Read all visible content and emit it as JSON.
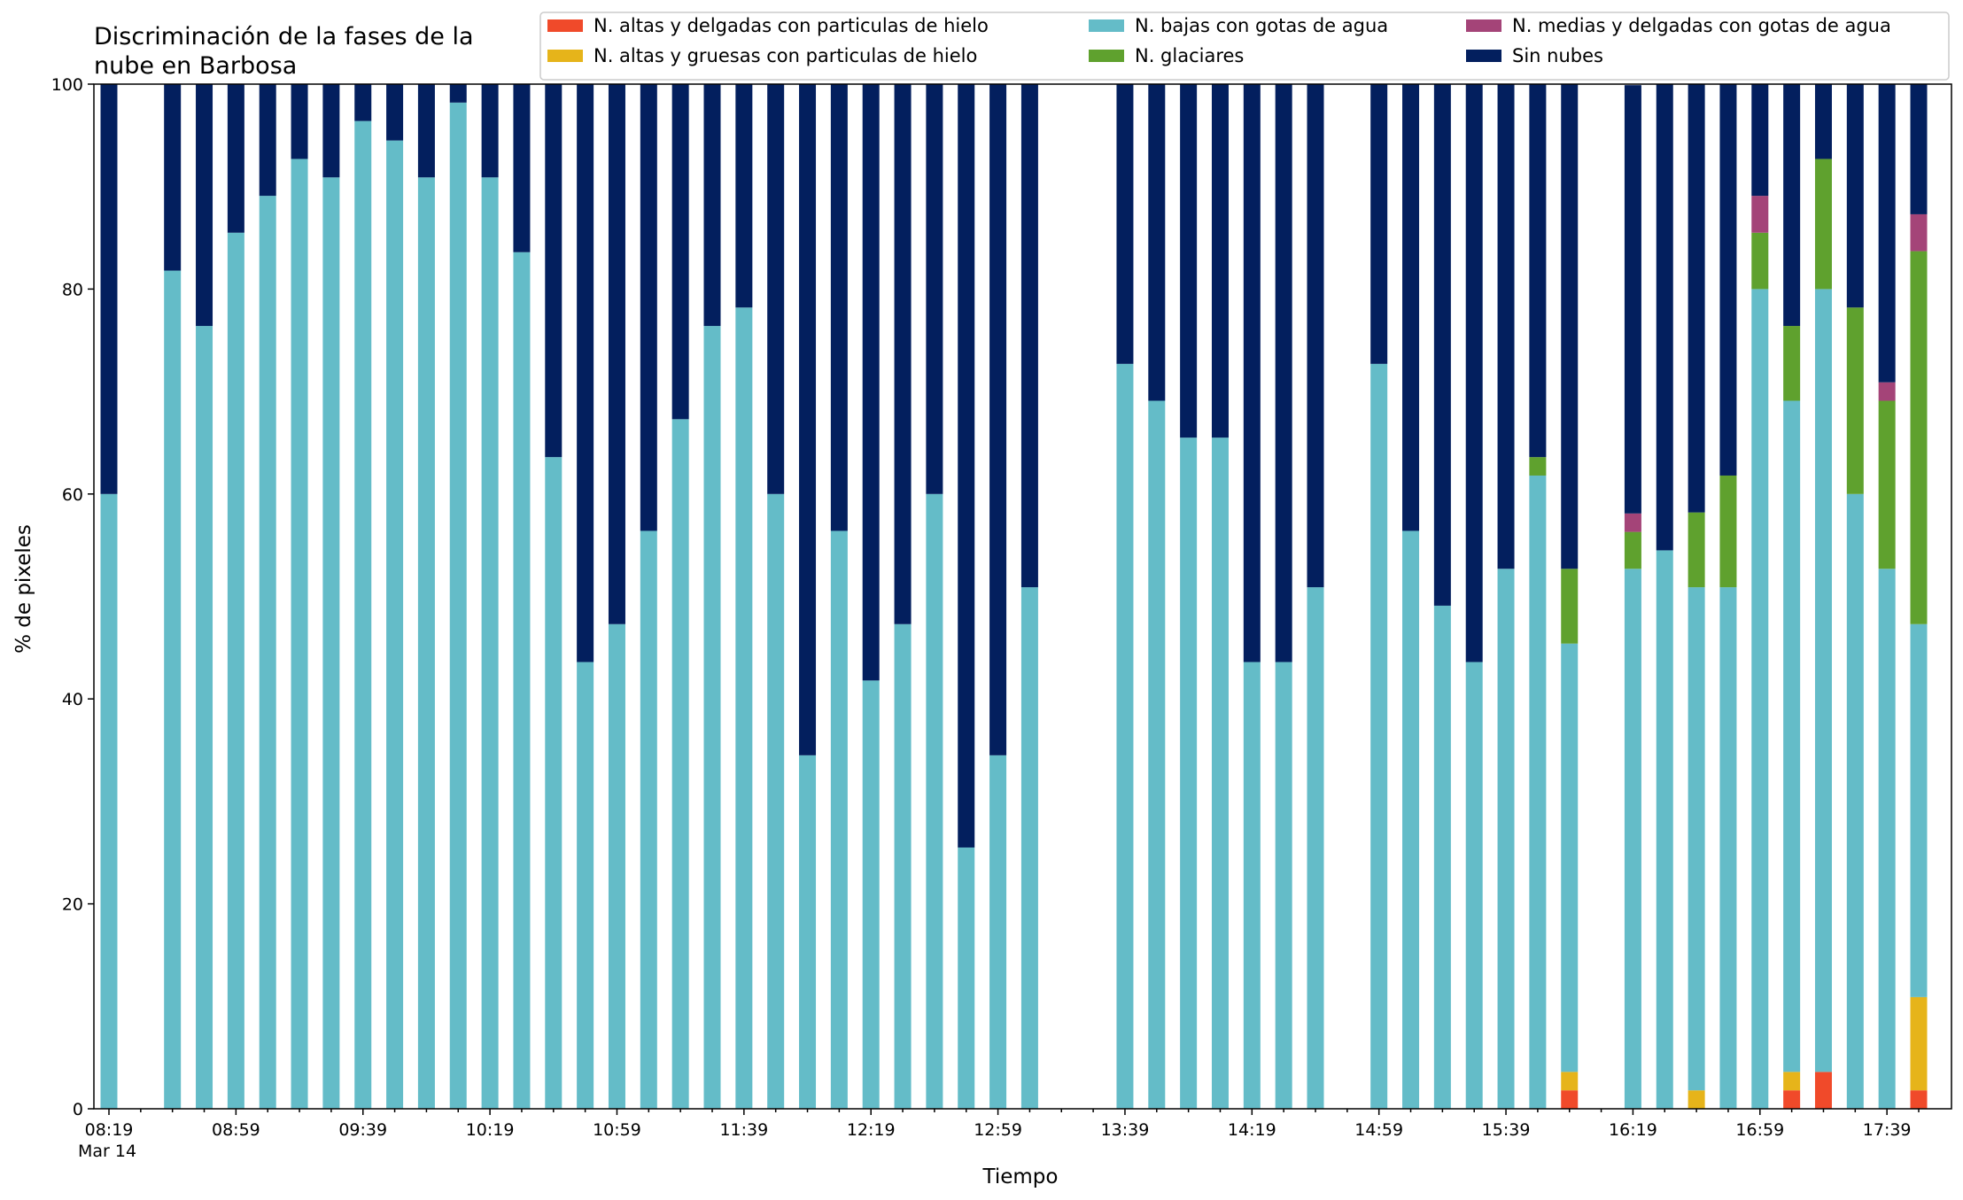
{
  "chart_data": {
    "type": "bar",
    "stacked": true,
    "title": "Discriminación de la fases de la nube en Barbosa",
    "title_lines": [
      "Discriminación de la fases de la",
      "nube en Barbosa"
    ],
    "xlabel": "Tiempo",
    "ylabel": "% de pixeles",
    "ylim": [
      0,
      100
    ],
    "yticks": [
      0,
      20,
      40,
      60,
      80,
      100
    ],
    "x_date_label": "Mar 14",
    "x_start": "08:19",
    "x_interval_minutes": 10,
    "xticks": [
      "08:19",
      "08:59",
      "09:39",
      "10:19",
      "10:59",
      "11:39",
      "12:19",
      "12:59",
      "13:39",
      "14:19",
      "14:59",
      "15:39",
      "16:19",
      "16:59",
      "17:39"
    ],
    "x": [
      "08:19",
      "08:29",
      "08:39",
      "08:49",
      "08:59",
      "09:09",
      "09:19",
      "09:29",
      "09:39",
      "09:49",
      "09:59",
      "10:09",
      "10:19",
      "10:29",
      "10:39",
      "10:49",
      "10:59",
      "11:09",
      "11:19",
      "11:29",
      "11:39",
      "11:49",
      "11:59",
      "12:09",
      "12:19",
      "12:29",
      "12:39",
      "12:49",
      "12:59",
      "13:09",
      "13:19",
      "13:29",
      "13:39",
      "13:49",
      "13:59",
      "14:09",
      "14:19",
      "14:29",
      "14:39",
      "14:49",
      "14:59",
      "15:09",
      "15:19",
      "15:29",
      "15:39",
      "15:49",
      "15:59",
      "16:09",
      "16:19",
      "16:29",
      "16:39",
      "16:49",
      "16:59",
      "17:09",
      "17:19",
      "17:29",
      "17:39",
      "17:49"
    ],
    "legend_position": "top-right",
    "series": [
      {
        "name": "N. altas y delgadas con particulas de hielo",
        "color": "#f04a2a",
        "values": [
          0,
          null,
          0,
          0,
          0,
          0,
          0,
          0,
          0,
          0,
          0,
          0,
          0,
          0,
          0,
          0,
          0,
          0,
          0,
          0,
          0,
          0,
          0,
          0,
          0,
          0,
          0,
          0,
          0,
          0,
          null,
          null,
          0,
          0,
          0,
          0,
          0,
          0,
          0,
          null,
          0,
          0,
          0,
          0,
          0,
          0,
          1.8,
          null,
          0,
          0,
          0,
          0,
          0,
          1.8,
          3.6,
          0,
          0,
          1.8
        ]
      },
      {
        "name": "N. altas y gruesas con particulas de hielo",
        "color": "#e6b41a",
        "values": [
          0,
          null,
          0,
          0,
          0,
          0,
          0,
          0,
          0,
          0,
          0,
          0,
          0,
          0,
          0,
          0,
          0,
          0,
          0,
          0,
          0,
          0,
          0,
          0,
          0,
          0,
          0,
          0,
          0,
          0,
          null,
          null,
          0,
          0,
          0,
          0,
          0,
          0,
          0,
          null,
          0,
          0,
          0,
          0,
          0,
          0,
          1.8,
          null,
          0,
          0,
          1.8,
          0,
          0,
          1.8,
          0,
          0,
          0,
          9.1
        ]
      },
      {
        "name": "N. bajas con gotas de agua",
        "color": "#64bcc8",
        "values": [
          60,
          null,
          81.8,
          76.4,
          85.5,
          89.1,
          92.7,
          90.9,
          96.4,
          94.5,
          90.9,
          98.2,
          90.9,
          83.6,
          63.6,
          43.6,
          47.3,
          56.4,
          67.3,
          76.4,
          78.2,
          60,
          34.5,
          56.4,
          41.8,
          47.3,
          60,
          25.5,
          34.5,
          50.9,
          null,
          null,
          72.7,
          69.1,
          65.5,
          65.5,
          43.6,
          43.6,
          50.9,
          null,
          72.7,
          56.4,
          49.1,
          43.6,
          52.7,
          61.8,
          41.8,
          null,
          52.7,
          54.5,
          49.1,
          50.9,
          80,
          65.5,
          76.4,
          60,
          52.7,
          36.4
        ]
      },
      {
        "name": "N. glaciares",
        "color": "#5fa12e",
        "values": [
          0,
          null,
          0,
          0,
          0,
          0,
          0,
          0,
          0,
          0,
          0,
          0,
          0,
          0,
          0,
          0,
          0,
          0,
          0,
          0,
          0,
          0,
          0,
          0,
          0,
          0,
          0,
          0,
          0,
          0,
          null,
          null,
          0,
          0,
          0,
          0,
          0,
          0,
          0,
          null,
          0,
          0,
          0,
          0,
          0,
          1.8,
          7.3,
          null,
          3.6,
          0,
          7.3,
          10.9,
          5.5,
          7.3,
          12.7,
          18.2,
          16.4,
          36.4
        ]
      },
      {
        "name": "N. medias y delgadas con gotas de agua",
        "color": "#a44478",
        "values": [
          0,
          null,
          0,
          0,
          0,
          0,
          0,
          0,
          0,
          0,
          0,
          0,
          0,
          0,
          0,
          0,
          0,
          0,
          0,
          0,
          0,
          0,
          0,
          0,
          0,
          0,
          0,
          0,
          0,
          0,
          null,
          null,
          0,
          0,
          0,
          0,
          0,
          0,
          0,
          null,
          0,
          0,
          0,
          0,
          0,
          0,
          0,
          null,
          1.8,
          0,
          0,
          0,
          3.6,
          0,
          0,
          0,
          1.8,
          3.6
        ]
      },
      {
        "name": "Sin nubes",
        "color": "#031f5e",
        "values": [
          40,
          null,
          18.2,
          23.6,
          14.5,
          10.9,
          7.3,
          9.1,
          3.6,
          5.5,
          9.1,
          1.8,
          9.1,
          16.4,
          36.4,
          56.4,
          52.7,
          43.6,
          32.7,
          23.6,
          21.8,
          40,
          65.5,
          43.6,
          58.2,
          52.7,
          40,
          74.5,
          65.5,
          49.1,
          null,
          null,
          27.3,
          30.9,
          34.5,
          34.5,
          56.4,
          56.4,
          49.1,
          null,
          27.3,
          43.6,
          50.9,
          56.4,
          47.3,
          36.4,
          47.3,
          null,
          41.8,
          45.5,
          41.8,
          38.2,
          10.9,
          23.6,
          7.3,
          21.8,
          29.1,
          12.7
        ]
      }
    ]
  }
}
